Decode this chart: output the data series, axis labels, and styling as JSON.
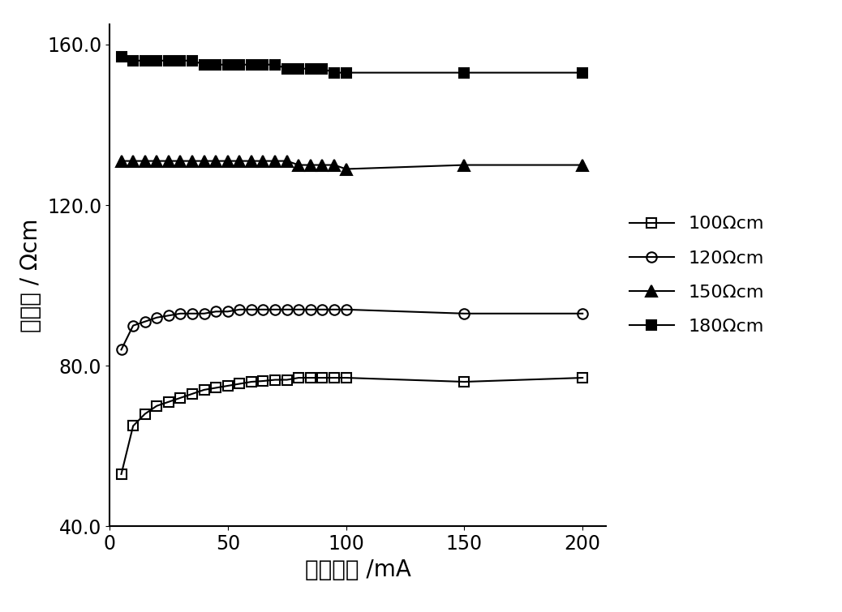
{
  "title": "",
  "xlabel": "恒定电流 /mA",
  "ylabel": "电阱率 / Ωcm",
  "xlim": [
    0,
    210
  ],
  "ylim": [
    40.0,
    165.0
  ],
  "xticks": [
    0,
    50,
    100,
    150,
    200
  ],
  "yticks": [
    40.0,
    80.0,
    120.0,
    160.0
  ],
  "background_color": "#ffffff",
  "series": [
    {
      "label": "100Ωcm",
      "color": "#000000",
      "marker": "s",
      "markersize": 9,
      "fillstyle": "none",
      "linewidth": 1.5,
      "x": [
        5,
        10,
        15,
        20,
        25,
        30,
        35,
        40,
        45,
        50,
        55,
        60,
        65,
        70,
        75,
        80,
        85,
        90,
        95,
        100,
        150,
        200
      ],
      "y": [
        53,
        65,
        68,
        70,
        71,
        72,
        73,
        74,
        74.5,
        75,
        75.5,
        76,
        76.2,
        76.5,
        76.5,
        77,
        77,
        77,
        77,
        77,
        76,
        77
      ]
    },
    {
      "label": "120Ωcm",
      "color": "#000000",
      "marker": "o",
      "markersize": 9,
      "fillstyle": "none",
      "linewidth": 1.5,
      "x": [
        5,
        10,
        15,
        20,
        25,
        30,
        35,
        40,
        45,
        50,
        55,
        60,
        65,
        70,
        75,
        80,
        85,
        90,
        95,
        100,
        150,
        200
      ],
      "y": [
        84,
        90,
        91,
        92,
        92.5,
        93,
        93,
        93,
        93.5,
        93.5,
        94,
        94,
        94,
        94,
        94,
        94,
        94,
        94,
        94,
        94,
        93,
        93
      ]
    },
    {
      "label": "150Ωcm",
      "color": "#000000",
      "marker": "^",
      "markersize": 10,
      "fillstyle": "full",
      "linewidth": 1.5,
      "x": [
        5,
        10,
        15,
        20,
        25,
        30,
        35,
        40,
        45,
        50,
        55,
        60,
        65,
        70,
        75,
        80,
        85,
        90,
        95,
        100,
        150,
        200
      ],
      "y": [
        131,
        131,
        131,
        131,
        131,
        131,
        131,
        131,
        131,
        131,
        131,
        131,
        131,
        131,
        131,
        130,
        130,
        130,
        130,
        129,
        130,
        130
      ]
    },
    {
      "label": "180Ωcm",
      "color": "#000000",
      "marker": "s",
      "markersize": 9,
      "fillstyle": "full",
      "linewidth": 1.5,
      "x": [
        5,
        10,
        15,
        20,
        25,
        30,
        35,
        40,
        45,
        50,
        55,
        60,
        65,
        70,
        75,
        80,
        85,
        90,
        95,
        100,
        150,
        200
      ],
      "y": [
        157,
        156,
        156,
        156,
        156,
        156,
        156,
        155,
        155,
        155,
        155,
        155,
        155,
        155,
        154,
        154,
        154,
        154,
        153,
        153,
        153,
        153
      ]
    }
  ],
  "fontsize_axis_label": 20,
  "fontsize_tick": 17,
  "fontsize_legend": 16
}
